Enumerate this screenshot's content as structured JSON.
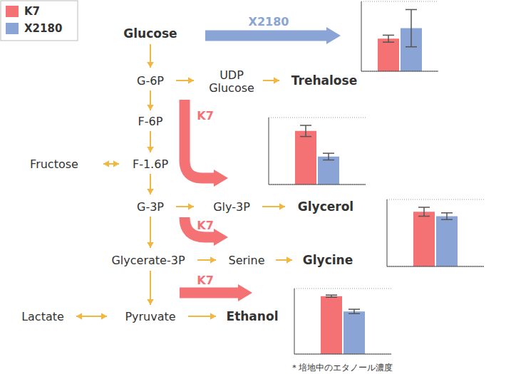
{
  "legend": [
    {
      "name": "K7",
      "color": "#f47174"
    },
    {
      "name": "X2180",
      "color": "#8aa4d6"
    }
  ],
  "nodes": [
    {
      "label": "Glucose",
      "bold": true
    },
    {
      "label": "G-6P"
    },
    {
      "lines": [
        "UDP",
        "Glucose"
      ]
    },
    {
      "label": "Trehalose",
      "bold": true
    },
    {
      "label": "F-6P"
    },
    {
      "label": "Fructose"
    },
    {
      "label": "F-1.6P"
    },
    {
      "label": "G-3P"
    },
    {
      "label": "Gly-3P"
    },
    {
      "label": "Glycerol",
      "bold": true
    },
    {
      "label": "Glycerate-3P"
    },
    {
      "label": "Serine"
    },
    {
      "label": "Glycine",
      "bold": true
    },
    {
      "label": "Lactate"
    },
    {
      "label": "Pyruvate"
    },
    {
      "label": "Ethanol",
      "bold": true
    }
  ],
  "arrows": [
    {
      "label": "X2180",
      "color": "#8aa4d6"
    },
    {
      "label": "K7",
      "color": "#f47174"
    },
    {
      "label": "K7",
      "color": "#f47174"
    },
    {
      "label": "K7",
      "color": "#f47174"
    }
  ],
  "chart_data": [
    {
      "type": "bar",
      "ylim": [
        0,
        6
      ],
      "yticks": [
        0,
        1,
        2,
        3,
        4,
        5,
        6
      ],
      "grid": true,
      "tick_labels": false,
      "series": [
        {
          "name": "K7",
          "color": "#f47174",
          "values": [
            2.8
          ],
          "error": [
            0.3
          ]
        },
        {
          "name": "X2180",
          "color": "#8aa4d6",
          "values": [
            3.7
          ],
          "error": [
            1.6
          ]
        }
      ]
    },
    {
      "type": "bar",
      "ylim": [
        0,
        6
      ],
      "yticks": [
        0,
        1,
        2,
        3,
        4,
        5,
        6
      ],
      "grid": true,
      "tick_labels": false,
      "series": [
        {
          "name": "K7",
          "color": "#f47174",
          "values": [
            4.8
          ],
          "error": [
            0.5
          ]
        },
        {
          "name": "X2180",
          "color": "#8aa4d6",
          "values": [
            2.5
          ],
          "error": [
            0.3
          ]
        }
      ]
    },
    {
      "type": "bar",
      "ylim": [
        0,
        6
      ],
      "yticks": [
        0,
        1,
        2,
        3,
        4,
        5,
        6
      ],
      "grid": true,
      "tick_labels": false,
      "series": [
        {
          "name": "K7",
          "color": "#f47174",
          "values": [
            4.9
          ],
          "error": [
            0.4
          ]
        },
        {
          "name": "X2180",
          "color": "#8aa4d6",
          "values": [
            4.5
          ],
          "error": [
            0.3
          ]
        }
      ]
    },
    {
      "type": "bar",
      "ylim": [
        0,
        6
      ],
      "yticks": [
        0,
        1,
        2,
        3,
        4,
        5,
        6
      ],
      "grid": true,
      "tick_labels": false,
      "note": "＊培地中のエタノール濃度",
      "series": [
        {
          "name": "K7",
          "color": "#f47174",
          "values": [
            5.3
          ],
          "error": [
            0.1
          ]
        },
        {
          "name": "X2180",
          "color": "#8aa4d6",
          "values": [
            3.9
          ],
          "error": [
            0.2
          ]
        }
      ]
    }
  ]
}
